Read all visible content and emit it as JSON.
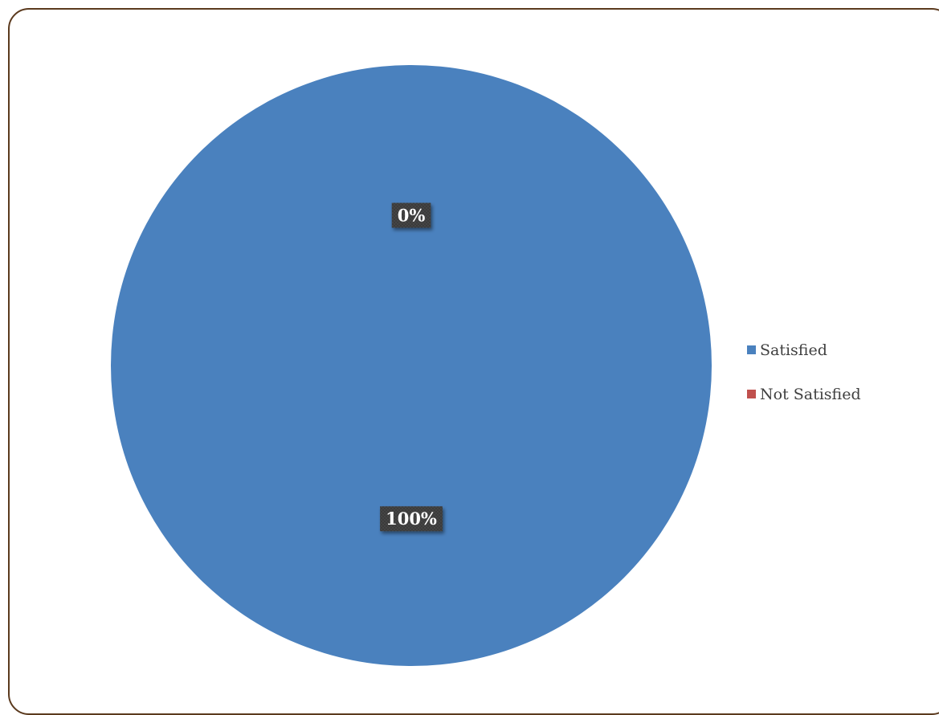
{
  "chart_data": {
    "type": "pie",
    "slices": [
      {
        "name": "Satisfied",
        "value": 100,
        "label": "100%",
        "color": "#4a81be"
      },
      {
        "name": "Not Satisfied",
        "value": 0,
        "label": "0%",
        "color": "#c0504d"
      }
    ],
    "legend": {
      "placement": "right"
    }
  }
}
